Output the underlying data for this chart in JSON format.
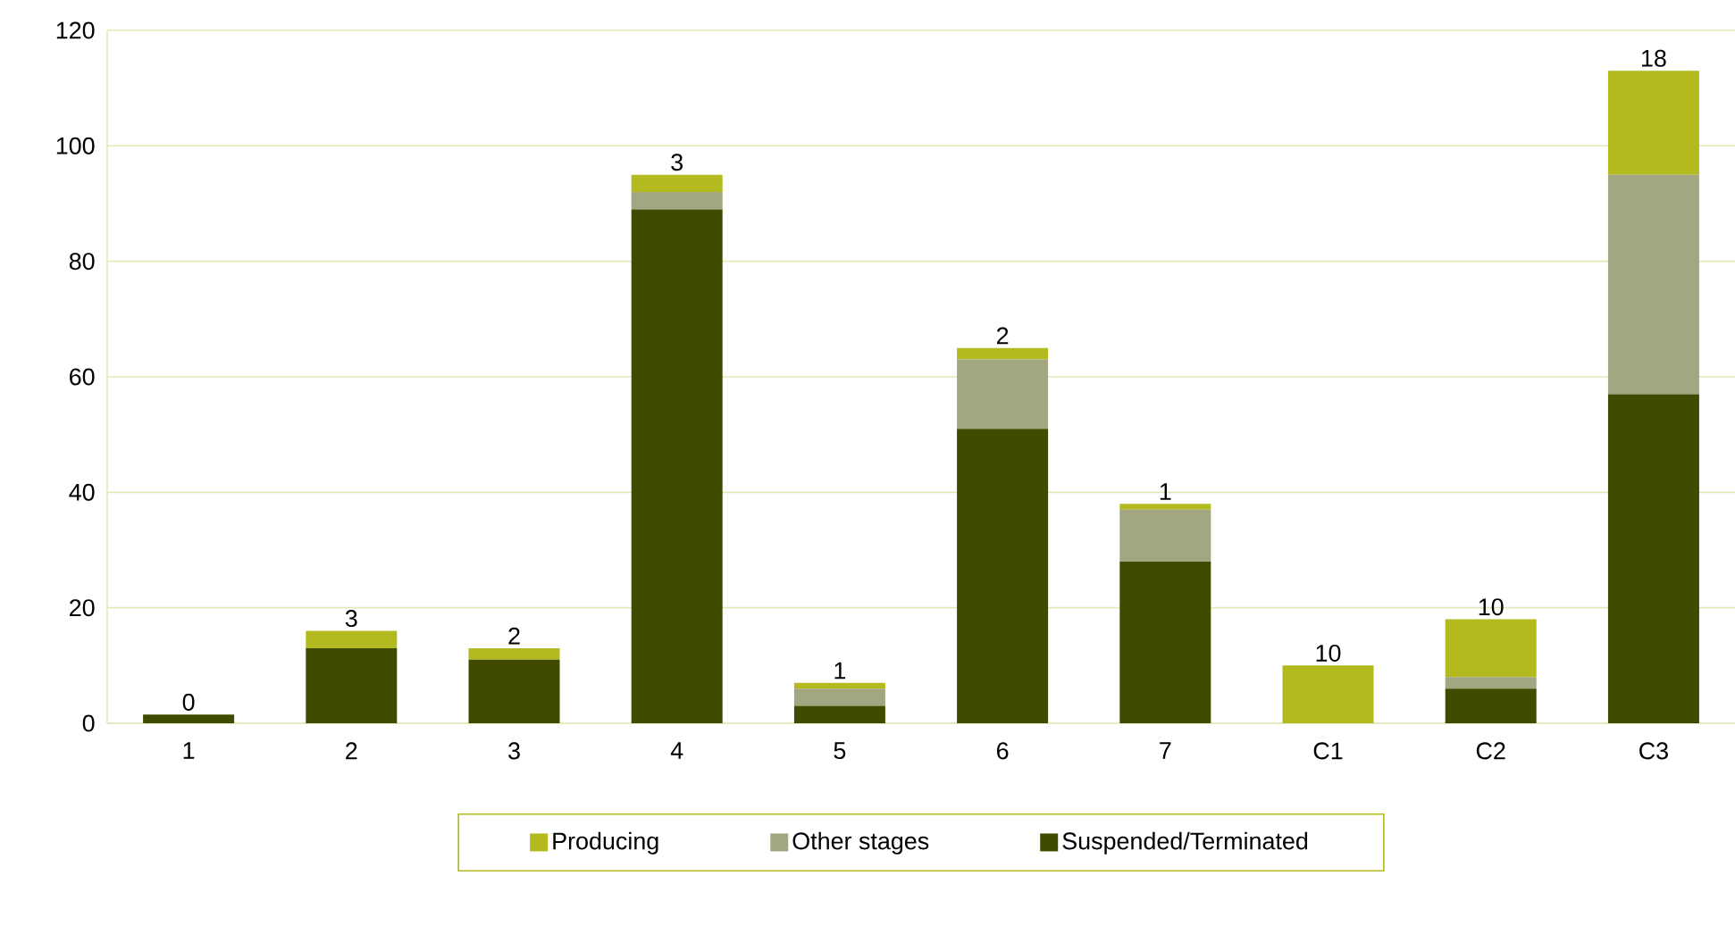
{
  "chart_data": {
    "type": "bar",
    "stacked": true,
    "categories": [
      "1",
      "2",
      "3",
      "4",
      "5",
      "6",
      "7",
      "C1",
      "C2",
      "C3"
    ],
    "series": [
      {
        "name": "Suspended/Terminated",
        "color": "#404b00",
        "values": [
          1.5,
          13,
          11,
          89,
          3,
          51,
          28,
          0,
          6,
          57
        ]
      },
      {
        "name": "Other stages",
        "color": "#a2a681",
        "values": [
          0,
          0,
          0,
          3,
          3,
          12,
          9,
          0,
          2,
          38
        ]
      },
      {
        "name": "Producing",
        "color": "#b2ba1f",
        "values": [
          0,
          3,
          2,
          3,
          1,
          2,
          1,
          10,
          10,
          18
        ],
        "value_labels": [
          "0",
          "3",
          "2",
          "3",
          "1",
          "2",
          "1",
          "10",
          "10",
          "18"
        ]
      }
    ],
    "ylim": [
      0,
      120
    ],
    "yticks": [
      0,
      20,
      40,
      60,
      80,
      100,
      120
    ],
    "grid": "y",
    "legend": "bottom"
  }
}
